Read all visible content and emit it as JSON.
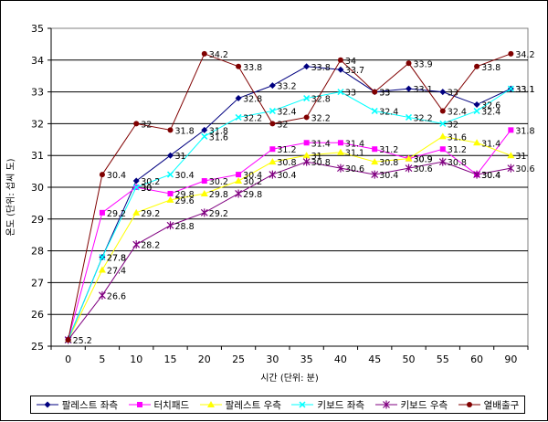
{
  "chart_data": {
    "type": "line",
    "title": "",
    "xlabel": "시간 (단위: 분)",
    "ylabel": "온도 (단위: 섭씨 도)",
    "categories": [
      "0",
      "5",
      "10",
      "15",
      "20",
      "25",
      "30",
      "35",
      "40",
      "45",
      "50",
      "55",
      "60",
      "90"
    ],
    "ylim": [
      25,
      35
    ],
    "yticks": [
      "25",
      "26",
      "27",
      "28",
      "29",
      "30",
      "31",
      "32",
      "33",
      "34",
      "35"
    ],
    "grid": true,
    "legend_position": "bottom",
    "series": [
      {
        "name": "팔레스트 좌측",
        "color": "#000080",
        "marker": "diamond",
        "values": [
          25.2,
          27.8,
          30.2,
          31,
          31.8,
          32.8,
          33.2,
          33.8,
          33.7,
          33,
          33.1,
          33,
          32.6,
          33.1
        ],
        "labels": [
          "25.2",
          "27.8",
          "30.2",
          "31",
          "31.8",
          "32.8",
          "33.2",
          "33.8",
          "33.7",
          "33",
          "33.1",
          "33",
          "32.6",
          "33.1"
        ]
      },
      {
        "name": "터치패드",
        "color": "#ff00ff",
        "marker": "square",
        "values": [
          25.2,
          29.2,
          30,
          29.8,
          30.2,
          30.4,
          31.2,
          31.4,
          31.4,
          31.2,
          30.9,
          31.2,
          30.4,
          31.8
        ],
        "labels": [
          "25.2",
          "29.2",
          "30",
          "29.8",
          "30.2",
          "30.4",
          "31.2",
          "31.4",
          "31.4",
          "31.2",
          "30.9",
          "31.2",
          "30.4",
          "31.8"
        ]
      },
      {
        "name": "팔레스트 우측",
        "color": "#ffff00",
        "marker": "triangle",
        "values": [
          25.2,
          27.4,
          29.2,
          29.6,
          29.8,
          30.2,
          30.8,
          31,
          31.1,
          30.8,
          30.9,
          31.6,
          31.4,
          31
        ],
        "labels": [
          "25.2",
          "27.4",
          "29.2",
          "29.6",
          "29.8",
          "30.2",
          "30.8",
          "31",
          "31.1",
          "30.8",
          "30.9",
          "31.6",
          "31.4",
          "31"
        ]
      },
      {
        "name": "키보드 좌측",
        "color": "#00ffff",
        "marker": "x",
        "values": [
          25.2,
          27.8,
          30,
          30.4,
          31.6,
          32.2,
          32.4,
          32.8,
          33,
          32.4,
          32.2,
          32,
          32.4,
          33.1
        ],
        "labels": [
          "25.2",
          "27.8",
          "30",
          "30.4",
          "31.6",
          "32.2",
          "32.4",
          "32.8",
          "33",
          "32.4",
          "32.2",
          "32",
          "32.4",
          "33.1"
        ]
      },
      {
        "name": "키보드 우측",
        "color": "#800080",
        "marker": "star",
        "values": [
          25.2,
          26.6,
          28.2,
          28.8,
          29.2,
          29.8,
          30.4,
          30.8,
          30.6,
          30.4,
          30.6,
          30.8,
          30.4,
          30.6
        ],
        "labels": [
          "25.2",
          "26.6",
          "28.2",
          "28.8",
          "29.2",
          "29.8",
          "30.4",
          "30.8",
          "30.6",
          "30.4",
          "30.6",
          "30.8",
          "30.4",
          "30.6"
        ]
      },
      {
        "name": "열배출구",
        "color": "#800000",
        "marker": "circle",
        "values": [
          25.2,
          30.4,
          32,
          31.8,
          34.2,
          33.8,
          32,
          32.2,
          34,
          33,
          33.9,
          32.4,
          33.8,
          34.2
        ],
        "labels": [
          "25.2",
          "30.4",
          "32",
          "31.8",
          "34.2",
          "33.8",
          "32",
          "32.2",
          "34",
          "33",
          "33.9",
          "32.4",
          "33.8",
          "34.2"
        ]
      }
    ]
  }
}
